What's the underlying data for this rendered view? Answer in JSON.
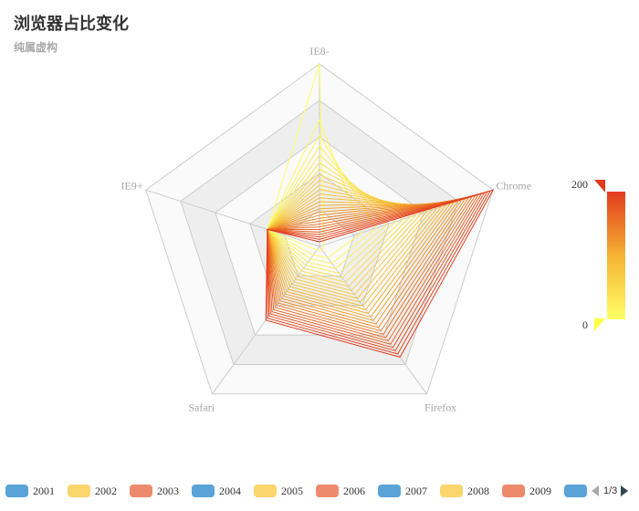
{
  "title": "浏览器占比变化",
  "subtitle": "纯属虚构",
  "chart_data": {
    "type": "radar",
    "indicators": [
      {
        "name": "IE8-",
        "max": 400
      },
      {
        "name": "IE9+",
        "max": 400
      },
      {
        "name": "Safari",
        "max": 400
      },
      {
        "name": "Firefox",
        "max": 400
      },
      {
        "name": "Chrome",
        "max": 400
      }
    ],
    "series_start": [
      400,
      120,
      10,
      10,
      10
    ],
    "series_end": [
      10,
      120,
      200,
      300,
      400
    ],
    "series_count": 28,
    "visual_map": {
      "min": 0,
      "max": 200,
      "max_label": "200",
      "min_label": "0",
      "colors": [
        "#ffff66",
        "#f5b233",
        "#e23b1e"
      ]
    },
    "split_number": 5
  },
  "legend": {
    "items": [
      {
        "label": "2001",
        "color": "#5aa3d8"
      },
      {
        "label": "2002",
        "color": "#fbd66c"
      },
      {
        "label": "2003",
        "color": "#ee8a6c"
      },
      {
        "label": "2004",
        "color": "#5aa3d8"
      },
      {
        "label": "2005",
        "color": "#fbd66c"
      },
      {
        "label": "2006",
        "color": "#ee8a6c"
      },
      {
        "label": "2007",
        "color": "#5aa3d8"
      },
      {
        "label": "2008",
        "color": "#fbd66c"
      },
      {
        "label": "2009",
        "color": "#ee8a6c"
      },
      {
        "label": "",
        "color": "#5aa3d8"
      }
    ],
    "pager_text": "1/3"
  }
}
